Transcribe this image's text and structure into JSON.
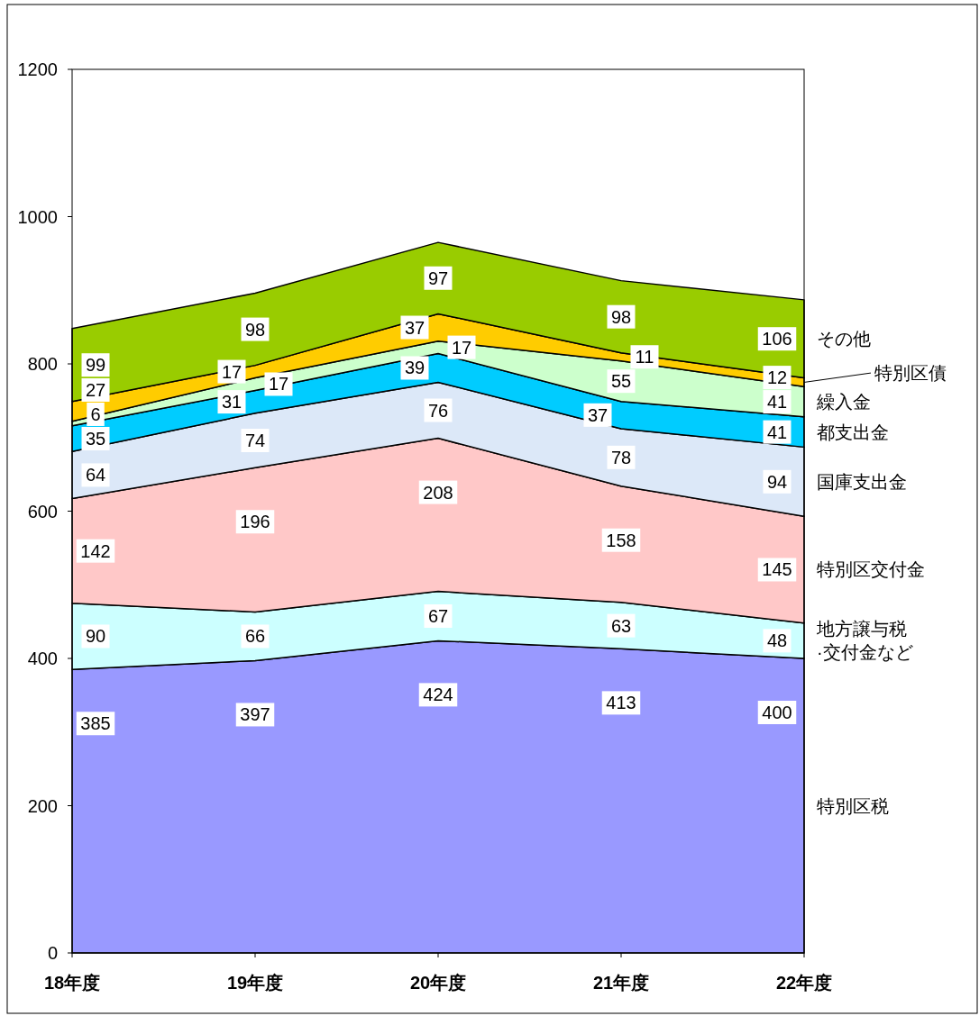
{
  "chart_data": {
    "type": "area",
    "stacked": true,
    "categories": [
      "18年度",
      "19年度",
      "20年度",
      "21年度",
      "22年度"
    ],
    "ylim": [
      0,
      1200
    ],
    "yticks": [
      0,
      200,
      400,
      600,
      800,
      1000,
      1200
    ],
    "grid": false,
    "legend": "right",
    "data_labels": true,
    "series": [
      {
        "name": "特別区税",
        "color": "#9999ff",
        "values": [
          385,
          397,
          424,
          413,
          400
        ]
      },
      {
        "name": "地方譲与税·交付金など",
        "color": "#ccffff",
        "values": [
          90,
          66,
          67,
          63,
          48
        ]
      },
      {
        "name": "特別区交付金",
        "color": "#ffc8c8",
        "values": [
          142,
          196,
          208,
          158,
          145
        ]
      },
      {
        "name": "国庫支出金",
        "color": "#dce8f8",
        "values": [
          64,
          74,
          76,
          78,
          94
        ]
      },
      {
        "name": "都支出金",
        "color": "#00ccff",
        "values": [
          35,
          31,
          39,
          37,
          41
        ]
      },
      {
        "name": "繰入金",
        "color": "#ccffcc",
        "values": [
          6,
          17,
          17,
          55,
          41
        ]
      },
      {
        "name": "特別区債",
        "color": "#ffcc00",
        "values": [
          27,
          17,
          37,
          11,
          12
        ]
      },
      {
        "name": "その他",
        "color": "#99cc00",
        "values": [
          99,
          98,
          97,
          98,
          106
        ]
      }
    ]
  }
}
